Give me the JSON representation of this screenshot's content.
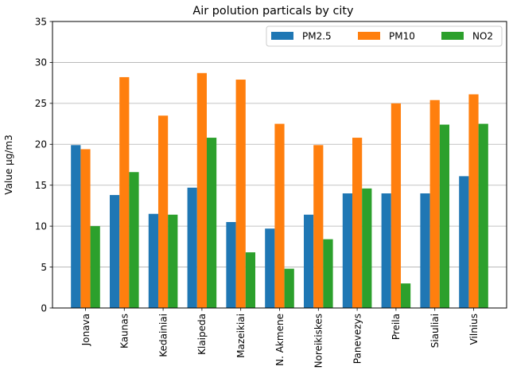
{
  "chart_data": {
    "type": "bar",
    "title": "Air polution particals by city",
    "xlabel": "",
    "ylabel": "Value µg/m3",
    "ylim": [
      0,
      35
    ],
    "yticks": [
      0,
      5,
      10,
      15,
      20,
      25,
      30,
      35
    ],
    "grid": "horizontal",
    "legend_position": "top-right",
    "categories": [
      "Jonava",
      "Kaunas",
      "Kedainiai",
      "Klaipeda",
      "Mazeikiai",
      "N. Akmene",
      "Noreikiskes",
      "Panevezys",
      "Preila",
      "Siauliai",
      "Vilnius"
    ],
    "series": [
      {
        "name": "PM2.5",
        "color": "#1f77b4",
        "values": [
          19.9,
          13.8,
          11.5,
          14.7,
          10.5,
          9.7,
          11.4,
          14.0,
          14.0,
          14.0,
          16.1
        ]
      },
      {
        "name": "PM10",
        "color": "#ff7f0e",
        "values": [
          19.4,
          28.2,
          23.5,
          28.7,
          27.9,
          22.5,
          19.9,
          20.8,
          25.0,
          25.4,
          26.1
        ]
      },
      {
        "name": "NO2",
        "color": "#2ca02c",
        "values": [
          10.0,
          16.6,
          11.4,
          20.8,
          6.8,
          4.8,
          8.4,
          14.6,
          3.0,
          22.4,
          22.5
        ]
      }
    ]
  }
}
